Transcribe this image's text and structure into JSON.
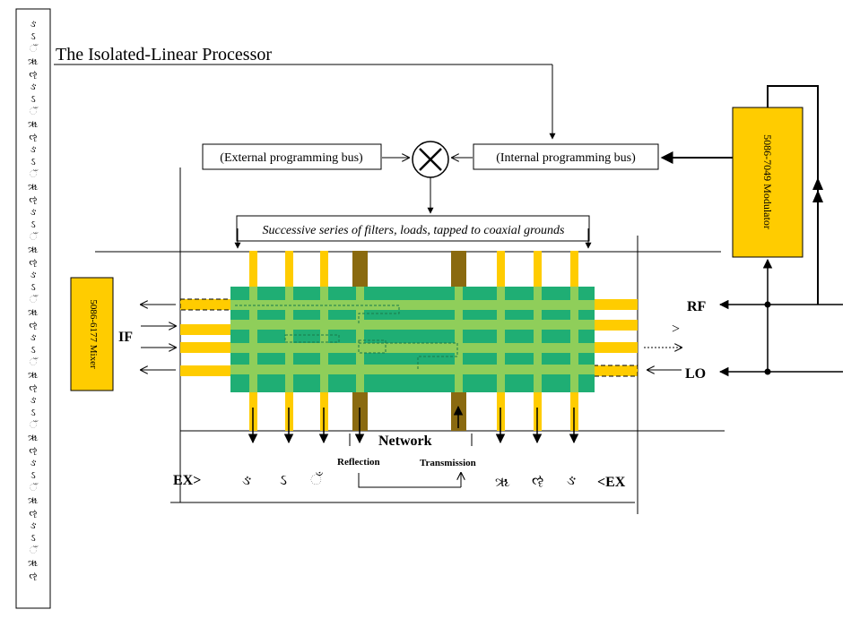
{
  "title": "The Isolated-Linear Processor",
  "boxes": {
    "external_bus": "(External programming bus)",
    "internal_bus": "(Internal programming bus)",
    "filters": "Successive series of filters, loads, tapped to coaxial grounds",
    "mixer": "5086-6177 Mixer",
    "modulator": "5086-7049 Modulator"
  },
  "ports": {
    "rf": "RF",
    "lo": "LO",
    "if": "IF",
    "rf_arrow": ">"
  },
  "bottom": {
    "network": "Network",
    "reflection": "Reflection",
    "transmission": "Transmission",
    "ex_left": "EX>",
    "ex_right": "<EX"
  },
  "glyphs": {
    "left_strip": [
      "ઙ",
      "ઽ",
      "ઁ",
      "ૠ",
      "ૡ",
      "ઙ",
      "ઽ",
      "ઁ",
      "ૠ",
      "ૡ",
      "ઙ",
      "ઽ",
      "ઁ",
      "ૠ",
      "ૡ",
      "ઙ",
      "ઽ",
      "ઁ",
      "ૠ",
      "ૡ",
      "ઙ",
      "ઽ",
      "ઁ",
      "ૠ",
      "ૡ",
      "ઙ",
      "ઽ",
      "ઁ",
      "ૠ",
      "ૡ",
      "ઙ",
      "ઽ",
      "ઁ",
      "ૠ",
      "ૡ",
      "ઙ",
      "ઽ",
      "ઁ",
      "ૠ",
      "ૡ",
      "ઙ",
      "ઽ",
      "ઁ",
      "ૠ",
      "ૡ"
    ],
    "bottom_row": [
      "ઙ",
      "ઽ",
      "ઁ",
      "ૠ",
      "ૡ",
      "ઙ"
    ]
  },
  "colors": {
    "gold": "#ffcc00",
    "green": "#1fae74",
    "dark_stub": "#8a6a10",
    "inner_trace": "#8fce5a"
  }
}
